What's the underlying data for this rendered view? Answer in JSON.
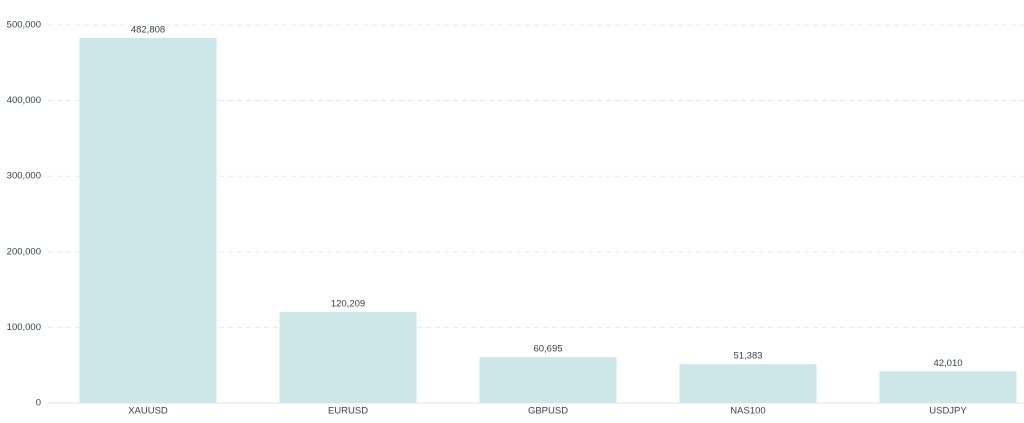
{
  "chart_data": {
    "type": "bar",
    "categories": [
      "XAUUSD",
      "EURUSD",
      "GBPUSD",
      "NAS100",
      "USDJPY"
    ],
    "values": [
      482808,
      120209,
      60695,
      51383,
      42010
    ],
    "value_labels": [
      "482,808",
      "120,209",
      "60,695",
      "51,383",
      "42,010"
    ],
    "color": "#cde7e8",
    "ylim": [
      0,
      500000
    ],
    "yticks": [
      0,
      {
        "value": 100000,
        "label": "100,000"
      },
      {
        "value": 200000,
        "label": "200,000"
      },
      {
        "value": 300000,
        "label": "300,000"
      },
      {
        "value": 400000,
        "label": "400,000"
      },
      {
        "value": 500000,
        "label": "500,000"
      }
    ],
    "grid": true
  }
}
